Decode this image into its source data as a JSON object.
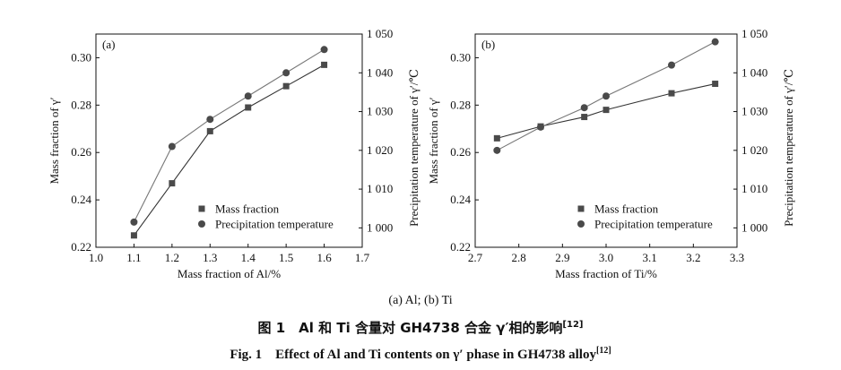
{
  "captions": {
    "sub": "(a) Al; (b) Ti",
    "cn_main": "图 1　Al 和 Ti 含量对 GH4738 合金 γ′相的影响",
    "cn_ref": "[12]",
    "en_main": "Fig. 1　Effect of Al and Ti contents on γ′ phase in GH4738 alloy",
    "en_ref": "[12]"
  },
  "chart_data": [
    {
      "type": "line",
      "panel_label": "(a)",
      "xlabel": "Mass fraction of Al/%",
      "ylabel": "Mass fraction of γ′",
      "y2label": "Precipitation temperature of γ′/℃",
      "xlim": [
        1.0,
        1.7
      ],
      "ylim": [
        0.22,
        0.31
      ],
      "y2lim": [
        995,
        1050
      ],
      "xticks": [
        1.0,
        1.1,
        1.2,
        1.3,
        1.4,
        1.5,
        1.6,
        1.7
      ],
      "xtick_labels": [
        "1.0",
        "1.1",
        "1.2",
        "1.3",
        "1.4",
        "1.5",
        "1.6",
        "1.7"
      ],
      "yticks": [
        0.22,
        0.24,
        0.26,
        0.28,
        0.3
      ],
      "ytick_labels": [
        "0.22",
        "0.24",
        "0.26",
        "0.28",
        "0.30"
      ],
      "y2ticks": [
        1000,
        1010,
        1020,
        1030,
        1040,
        1050
      ],
      "y2tick_labels": [
        "1 000",
        "1 010",
        "1 020",
        "1 030",
        "1 040",
        "1 050"
      ],
      "legend_position": "bottom-right",
      "series": [
        {
          "name": "Mass fraction",
          "marker": "square",
          "axis": "left",
          "x": [
            1.1,
            1.2,
            1.3,
            1.4,
            1.5,
            1.6
          ],
          "y": [
            0.225,
            0.247,
            0.269,
            0.279,
            0.288,
            0.297
          ]
        },
        {
          "name": "Precipitation temperature",
          "marker": "circle",
          "axis": "right",
          "x": [
            1.1,
            1.2,
            1.3,
            1.4,
            1.5,
            1.6
          ],
          "y": [
            1001.5,
            1021,
            1028,
            1034,
            1040,
            1046
          ]
        }
      ]
    },
    {
      "type": "line",
      "panel_label": "(b)",
      "xlabel": "Mass fraction of Ti/%",
      "ylabel": "Mass fraction of γ′",
      "y2label": "Precipitation temperature of γ′/℃",
      "xlim": [
        2.7,
        3.3
      ],
      "ylim": [
        0.22,
        0.31
      ],
      "y2lim": [
        995,
        1050
      ],
      "xticks": [
        2.7,
        2.8,
        2.9,
        3.0,
        3.1,
        3.2,
        3.3
      ],
      "xtick_labels": [
        "2.7",
        "2.8",
        "2.9",
        "3.0",
        "3.1",
        "3.2",
        "3.3"
      ],
      "yticks": [
        0.22,
        0.24,
        0.26,
        0.28,
        0.3
      ],
      "ytick_labels": [
        "0.22",
        "0.24",
        "0.26",
        "0.28",
        "0.30"
      ],
      "y2ticks": [
        1000,
        1010,
        1020,
        1030,
        1040,
        1050
      ],
      "y2tick_labels": [
        "1 000",
        "1 010",
        "1 020",
        "1 030",
        "1 040",
        "1 050"
      ],
      "legend_position": "bottom-right",
      "series": [
        {
          "name": "Mass fraction",
          "marker": "square",
          "axis": "left",
          "x": [
            2.75,
            2.85,
            2.95,
            3.0,
            3.15,
            3.25
          ],
          "y": [
            0.266,
            0.271,
            0.275,
            0.278,
            0.285,
            0.289
          ]
        },
        {
          "name": "Precipitation temperature",
          "marker": "circle",
          "axis": "right",
          "x": [
            2.75,
            2.85,
            2.95,
            3.0,
            3.15,
            3.25
          ],
          "y": [
            1020,
            1026,
            1031,
            1034,
            1042,
            1048
          ]
        }
      ]
    }
  ]
}
